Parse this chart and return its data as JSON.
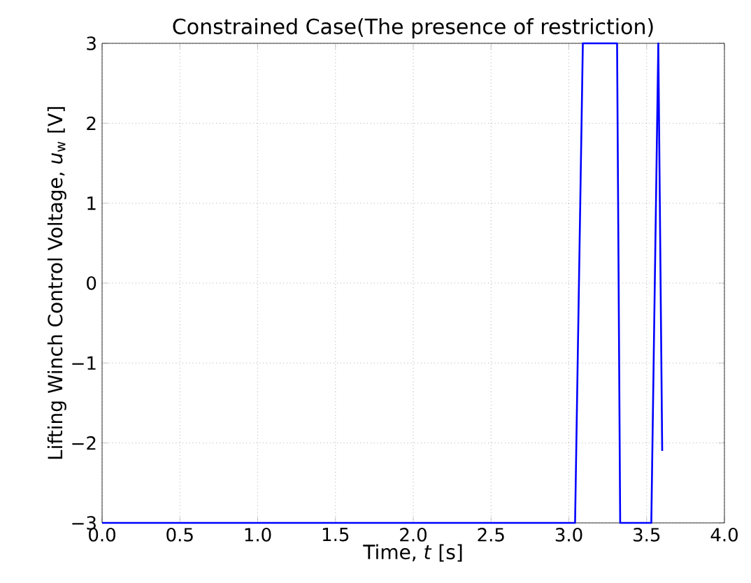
{
  "chart_data": {
    "type": "line",
    "title": "Constrained Case(The presence of restriction)",
    "xlabel": "Time, *t* [s]",
    "ylabel": "Lifting Winch Control Voltage, *u*$_{w}$ [V]",
    "x": [
      0,
      3.04,
      3.09,
      3.31,
      3.33,
      3.53,
      3.575,
      3.6
    ],
    "series": [
      {
        "color": "#0000ff",
        "values": [
          -3,
          -3,
          3,
          3,
          -3,
          -3,
          3,
          -2.1
        ]
      }
    ],
    "xlim": [
      0,
      4
    ],
    "ylim": [
      -3,
      3
    ],
    "xticks": [
      {
        "value": 0,
        "label": "0.0"
      },
      0.5,
      {
        "value": 1,
        "label": "1.0"
      },
      1.5,
      {
        "value": 2,
        "label": "2.0"
      },
      2.5,
      {
        "value": 3,
        "label": "3.0"
      },
      3.5,
      {
        "value": 4,
        "label": "4.0"
      }
    ],
    "yticks": [
      {
        "value": -3,
        "label": "−3"
      },
      {
        "value": -2,
        "label": "−2"
      },
      {
        "value": -1,
        "label": "−1"
      },
      0,
      1,
      2,
      3
    ],
    "grid": true,
    "line_style": "solid",
    "marker": "none"
  }
}
